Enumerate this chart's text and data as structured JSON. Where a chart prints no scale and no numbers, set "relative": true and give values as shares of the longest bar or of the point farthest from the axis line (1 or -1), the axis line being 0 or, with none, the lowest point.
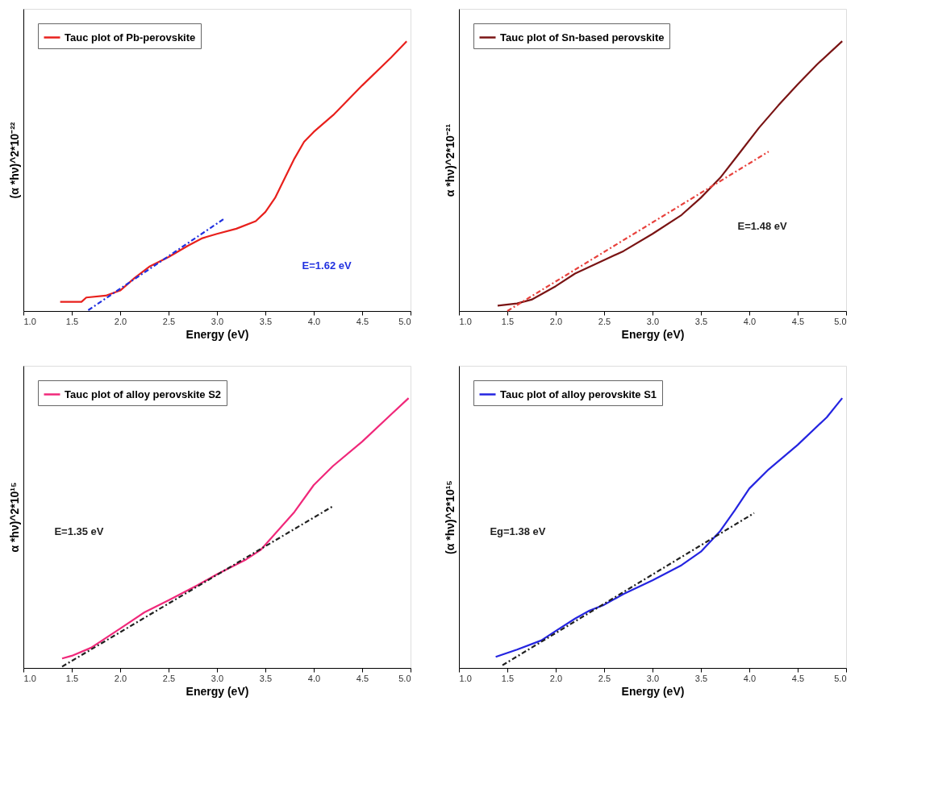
{
  "chart_data": [
    {
      "type": "line",
      "relative": true,
      "xlabel": "Energy (eV)",
      "ylabel": "(α *hν)^2*10⁻²²",
      "legend": "top left",
      "grid": false,
      "xlim": [
        1.0,
        5.0
      ],
      "xticks": [
        {
          "value": 1.0,
          "label": "1.0"
        },
        1.5,
        {
          "value": 2.0,
          "label": "2.0"
        },
        2.5,
        {
          "value": 3.0,
          "label": "3.0"
        },
        3.5,
        {
          "value": 4.0,
          "label": "4.0"
        },
        4.5,
        {
          "value": 5.0,
          "label": "5.0"
        }
      ],
      "annotations": [
        "E=1.62 eV"
      ],
      "series": [
        {
          "name": "Tauc plot of Pb-perovskite",
          "color": "#e8201c",
          "x": [
            1.38,
            1.6,
            1.65,
            1.85,
            2.0,
            2.15,
            2.3,
            2.5,
            2.7,
            2.85,
            3.0,
            3.2,
            3.4,
            3.5,
            3.6,
            3.7,
            3.8,
            3.9,
            4.0,
            4.2,
            4.5,
            4.8,
            4.96
          ],
          "values": [
            0.034,
            0.034,
            0.05,
            0.057,
            0.076,
            0.123,
            0.164,
            0.2,
            0.242,
            0.27,
            0.286,
            0.305,
            0.333,
            0.367,
            0.419,
            0.492,
            0.565,
            0.627,
            0.664,
            0.726,
            0.836,
            0.94,
            1.0
          ]
        },
        {
          "type": "line",
          "line_style": "dashed",
          "color": "#2030e0",
          "x": [
            1.67,
            3.07
          ],
          "values": [
            0.003,
            0.341
          ]
        }
      ]
    },
    {
      "type": "line",
      "relative": true,
      "xlabel": "Energy (eV)",
      "ylabel": "α *hν)^2*10⁻²¹",
      "legend": "top left",
      "grid": false,
      "xlim": [
        1.0,
        5.0
      ],
      "xticks": [
        {
          "value": 1.0,
          "label": "1.0"
        },
        1.5,
        {
          "value": 2.0,
          "label": "2.0"
        },
        2.5,
        {
          "value": 3.0,
          "label": "3.0"
        },
        3.5,
        {
          "value": 4.0,
          "label": "4.0"
        },
        4.5,
        {
          "value": 5.0,
          "label": "5.0"
        }
      ],
      "annotations": [
        "E=1.48 eV"
      ],
      "series": [
        {
          "name": "Tauc plot of Sn-based perovskite",
          "color": "#7a1414",
          "x": [
            1.4,
            1.6,
            1.75,
            2.0,
            2.2,
            2.5,
            2.7,
            3.0,
            3.3,
            3.5,
            3.7,
            3.9,
            4.1,
            4.3,
            4.5,
            4.7,
            4.96
          ],
          "values": [
            0.02,
            0.028,
            0.042,
            0.092,
            0.139,
            0.189,
            0.222,
            0.286,
            0.356,
            0.42,
            0.494,
            0.586,
            0.679,
            0.762,
            0.84,
            0.914,
            1.0
          ]
        },
        {
          "type": "line",
          "line_style": "dashed",
          "color": "#e8413c",
          "x": [
            1.5,
            4.2
          ],
          "values": [
            0.0,
            0.591
          ]
        }
      ]
    },
    {
      "type": "line",
      "relative": true,
      "xlabel": "Energy (eV)",
      "ylabel": "α *hν)^2*10¹⁵",
      "legend": "top left",
      "grid": false,
      "xlim": [
        1.0,
        5.0
      ],
      "xticks": [
        {
          "value": 1.0,
          "label": "1.0"
        },
        1.5,
        {
          "value": 2.0,
          "label": "2.0"
        },
        2.5,
        {
          "value": 3.0,
          "label": "3.0"
        },
        3.5,
        {
          "value": 4.0,
          "label": "4.0"
        },
        4.5,
        {
          "value": 5.0,
          "label": "5.0"
        }
      ],
      "annotations": [
        "E=1.35 eV"
      ],
      "series": [
        {
          "name": "Tauc plot of alloy perovskite S2",
          "color": "#f0287a",
          "x": [
            1.4,
            1.5,
            1.7,
            2.0,
            2.25,
            2.5,
            2.8,
            3.0,
            3.3,
            3.45,
            3.6,
            3.8,
            4.0,
            4.2,
            4.5,
            4.8,
            4.98
          ],
          "values": [
            0.035,
            0.045,
            0.075,
            0.146,
            0.206,
            0.251,
            0.307,
            0.347,
            0.402,
            0.437,
            0.497,
            0.578,
            0.678,
            0.749,
            0.839,
            0.94,
            1.0
          ]
        },
        {
          "type": "line",
          "line_style": "dashed",
          "color": "#202020",
          "x": [
            1.4,
            4.2
          ],
          "values": [
            0.005,
            0.6
          ]
        }
      ]
    },
    {
      "type": "line",
      "relative": true,
      "xlabel": "Energy (eV)",
      "ylabel": "(α *hν)^2*10¹⁵",
      "legend": "top left",
      "grid": false,
      "xlim": [
        1.0,
        5.0
      ],
      "xticks": [
        {
          "value": 1.0,
          "label": "1.0"
        },
        1.5,
        {
          "value": 2.0,
          "label": "2.0"
        },
        2.5,
        {
          "value": 3.0,
          "label": "3.0"
        },
        3.5,
        {
          "value": 4.0,
          "label": "4.0"
        },
        4.5,
        {
          "value": 5.0,
          "label": "5.0"
        }
      ],
      "annotations": [
        "Eg=1.38 eV"
      ],
      "series": [
        {
          "name": "Tauc plot of alloy perovskite S1",
          "color": "#2424e0",
          "x": [
            1.38,
            1.6,
            1.85,
            2.0,
            2.2,
            2.35,
            2.5,
            2.7,
            3.0,
            3.3,
            3.5,
            3.7,
            3.85,
            4.0,
            4.2,
            4.5,
            4.8,
            4.96
          ],
          "values": [
            0.041,
            0.068,
            0.102,
            0.137,
            0.183,
            0.213,
            0.234,
            0.274,
            0.325,
            0.381,
            0.431,
            0.508,
            0.584,
            0.665,
            0.736,
            0.827,
            0.929,
            1.0
          ]
        },
        {
          "type": "line",
          "line_style": "dashed",
          "color": "#202020",
          "x": [
            1.45,
            4.05
          ],
          "values": [
            0.01,
            0.574
          ]
        }
      ]
    }
  ]
}
